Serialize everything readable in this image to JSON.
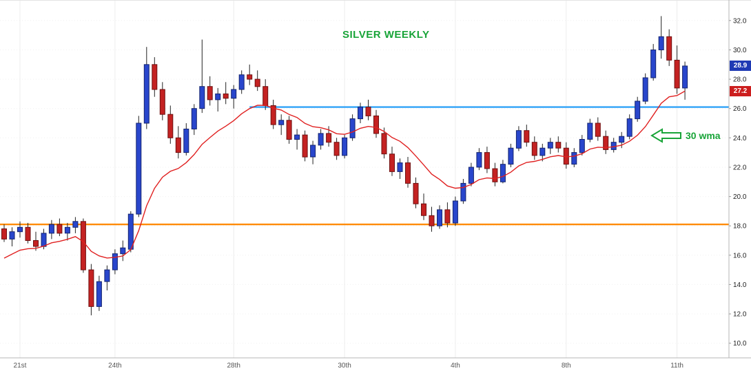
{
  "chart_data": {
    "type": "candlestick",
    "title": "SILVER WEEKLY",
    "ylim": [
      9.0,
      33.4
    ],
    "price_axis_ticks": [
      32.0,
      30.0,
      28.0,
      26.0,
      24.0,
      22.0,
      20.0,
      18.0,
      16.0,
      14.0,
      12.0,
      10.0
    ],
    "x_labels": [
      {
        "label": "21st",
        "index": 2
      },
      {
        "label": "24th",
        "index": 14
      },
      {
        "label": "28th",
        "index": 29
      },
      {
        "label": "30th",
        "index": 43
      },
      {
        "label": "4th",
        "index": 57
      },
      {
        "label": "8th",
        "index": 71
      },
      {
        "label": "11th",
        "index": 85
      }
    ],
    "candles": [
      [
        17.8,
        18.1,
        16.9,
        17.1
      ],
      [
        17.1,
        17.9,
        16.6,
        17.6
      ],
      [
        17.6,
        18.3,
        17.2,
        17.9
      ],
      [
        17.9,
        18.2,
        16.8,
        17.0
      ],
      [
        17.0,
        17.6,
        16.3,
        16.6
      ],
      [
        16.6,
        17.8,
        16.4,
        17.5
      ],
      [
        17.5,
        18.4,
        17.1,
        18.1
      ],
      [
        18.1,
        18.5,
        17.3,
        17.5
      ],
      [
        17.5,
        18.2,
        17.0,
        17.9
      ],
      [
        17.9,
        18.6,
        17.5,
        18.3
      ],
      [
        18.3,
        18.5,
        14.8,
        15.0
      ],
      [
        15.0,
        15.4,
        11.9,
        12.5
      ],
      [
        12.5,
        14.6,
        12.2,
        14.2
      ],
      [
        14.2,
        15.3,
        13.6,
        15.0
      ],
      [
        15.0,
        16.4,
        14.7,
        16.1
      ],
      [
        16.1,
        17.0,
        15.6,
        16.5
      ],
      [
        16.4,
        19.0,
        16.2,
        18.8
      ],
      [
        18.8,
        25.5,
        18.6,
        25.0
      ],
      [
        25.0,
        30.2,
        24.6,
        29.0
      ],
      [
        29.0,
        29.5,
        26.8,
        27.3
      ],
      [
        27.3,
        27.8,
        25.2,
        25.6
      ],
      [
        25.6,
        26.2,
        23.6,
        24.0
      ],
      [
        24.0,
        24.8,
        22.6,
        23.0
      ],
      [
        23.0,
        25.0,
        22.8,
        24.6
      ],
      [
        24.6,
        26.3,
        24.2,
        26.0
      ],
      [
        26.0,
        30.7,
        25.7,
        27.5
      ],
      [
        27.5,
        28.2,
        26.2,
        26.6
      ],
      [
        26.6,
        27.4,
        25.8,
        27.0
      ],
      [
        27.0,
        27.8,
        26.3,
        26.7
      ],
      [
        26.7,
        27.6,
        26.0,
        27.3
      ],
      [
        27.3,
        28.6,
        27.0,
        28.3
      ],
      [
        28.3,
        29.0,
        27.6,
        28.0
      ],
      [
        28.0,
        28.6,
        27.2,
        27.5
      ],
      [
        27.5,
        28.0,
        25.9,
        26.2
      ],
      [
        26.2,
        26.6,
        24.6,
        24.9
      ],
      [
        24.9,
        25.6,
        24.2,
        25.2
      ],
      [
        25.2,
        25.5,
        23.6,
        23.9
      ],
      [
        23.9,
        24.6,
        23.2,
        24.2
      ],
      [
        24.2,
        24.5,
        22.4,
        22.7
      ],
      [
        22.7,
        23.8,
        22.2,
        23.5
      ],
      [
        23.5,
        24.6,
        23.2,
        24.3
      ],
      [
        24.3,
        24.8,
        23.4,
        23.7
      ],
      [
        23.7,
        24.0,
        22.5,
        22.8
      ],
      [
        22.8,
        24.2,
        22.6,
        24.0
      ],
      [
        24.0,
        25.6,
        23.8,
        25.3
      ],
      [
        25.3,
        26.4,
        25.0,
        26.1
      ],
      [
        26.1,
        26.6,
        25.2,
        25.5
      ],
      [
        25.5,
        25.9,
        24.0,
        24.3
      ],
      [
        24.3,
        24.7,
        22.6,
        22.9
      ],
      [
        22.9,
        23.4,
        21.4,
        21.7
      ],
      [
        21.7,
        22.6,
        21.2,
        22.3
      ],
      [
        22.3,
        22.7,
        20.6,
        20.9
      ],
      [
        20.9,
        21.3,
        19.2,
        19.5
      ],
      [
        19.5,
        20.2,
        18.4,
        18.7
      ],
      [
        18.7,
        19.3,
        17.6,
        18.0
      ],
      [
        18.0,
        19.4,
        17.8,
        19.1
      ],
      [
        19.1,
        19.6,
        17.9,
        18.2
      ],
      [
        18.2,
        20.0,
        18.0,
        19.7
      ],
      [
        19.7,
        21.2,
        19.5,
        20.9
      ],
      [
        20.9,
        22.3,
        20.7,
        22.0
      ],
      [
        22.0,
        23.3,
        21.8,
        23.0
      ],
      [
        23.0,
        23.4,
        21.6,
        21.9
      ],
      [
        21.9,
        22.3,
        20.7,
        21.0
      ],
      [
        21.0,
        22.5,
        20.9,
        22.2
      ],
      [
        22.2,
        23.6,
        22.0,
        23.3
      ],
      [
        23.3,
        24.8,
        23.1,
        24.5
      ],
      [
        24.5,
        24.9,
        23.4,
        23.7
      ],
      [
        23.7,
        24.1,
        22.5,
        22.8
      ],
      [
        22.8,
        23.6,
        22.4,
        23.3
      ],
      [
        23.3,
        24.0,
        22.9,
        23.7
      ],
      [
        23.7,
        24.1,
        23.0,
        23.3
      ],
      [
        23.3,
        23.7,
        21.9,
        22.2
      ],
      [
        22.2,
        23.3,
        22.0,
        23.0
      ],
      [
        23.0,
        24.2,
        22.8,
        23.9
      ],
      [
        23.9,
        25.3,
        23.7,
        25.0
      ],
      [
        25.0,
        25.4,
        23.8,
        24.1
      ],
      [
        24.1,
        24.5,
        22.9,
        23.2
      ],
      [
        23.2,
        24.0,
        23.0,
        23.7
      ],
      [
        23.7,
        24.4,
        23.3,
        24.1
      ],
      [
        24.1,
        25.6,
        23.9,
        25.3
      ],
      [
        25.3,
        26.8,
        25.1,
        26.5
      ],
      [
        26.5,
        28.4,
        26.3,
        28.1
      ],
      [
        28.1,
        30.4,
        27.9,
        30.0
      ],
      [
        30.0,
        32.3,
        29.4,
        30.9
      ],
      [
        30.9,
        31.4,
        28.9,
        29.3
      ],
      [
        29.3,
        30.3,
        27.0,
        27.4
      ],
      [
        27.4,
        29.2,
        26.6,
        28.9
      ]
    ],
    "moving_average": {
      "label": "30 wma",
      "alpha": 0.15,
      "current_value": 27.2
    },
    "horizontal_lines": [
      {
        "price": 26.1,
        "from_index": 31,
        "color": "#2fa2f8"
      },
      {
        "price": 18.1,
        "from_index": 0,
        "color": "#ff8a00"
      }
    ],
    "price_badges": [
      {
        "value": "28.9",
        "price": 28.9,
        "bg": "#1f3ab4",
        "role": "last-price"
      },
      {
        "value": "27.2",
        "price": 27.2,
        "bg": "#cc1e1e",
        "role": "ma-value"
      }
    ],
    "last_price": 28.9,
    "colors": {
      "up": "#2946cc",
      "down": "#c42222",
      "up_border": "#14246e",
      "down_border": "#6e1010",
      "wick": "#222222",
      "ma": "#e02020",
      "title": "#18a438",
      "annotation": "#18a438",
      "axis_text": "#222222",
      "date_text": "#555555",
      "grid_h": "#f0f0f0",
      "grid_v": "#ececec",
      "border": "#b5b5b5"
    }
  }
}
